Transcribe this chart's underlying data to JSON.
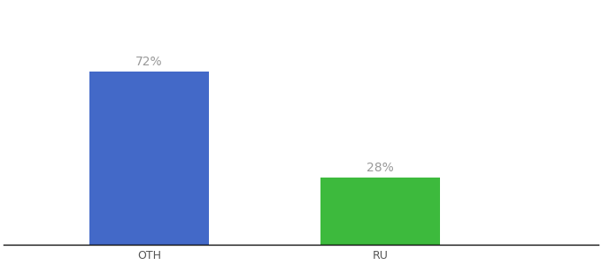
{
  "categories": [
    "OTH",
    "RU"
  ],
  "values": [
    72,
    28
  ],
  "bar_colors": [
    "#4369c8",
    "#3dba3d"
  ],
  "label_texts": [
    "72%",
    "28%"
  ],
  "label_color": "#999999",
  "ylim": [
    0,
    100
  ],
  "background_color": "#ffffff",
  "label_fontsize": 10,
  "tick_fontsize": 9,
  "bar_width": 0.18,
  "positions": [
    0.27,
    0.62
  ],
  "xlim": [
    0.05,
    0.95
  ]
}
